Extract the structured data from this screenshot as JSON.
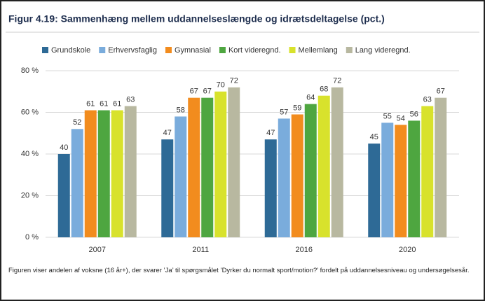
{
  "chart_data": {
    "type": "bar",
    "title": "Figur 4.19: Sammenhæng mellem uddannelseslængde og idrætsdeltagelse (pct.)",
    "caption": "Figuren viser andelen af voksne (16 år+), der svarer ’Ja’ til spørgsmålet ’Dyrker du normalt sport/motion?’ fordelt på uddannelsesniveau og undersøgelsesår.",
    "categories": [
      "2007",
      "2011",
      "2016",
      "2020"
    ],
    "series": [
      {
        "name": "Grundskole",
        "color": "#2e6a96",
        "values": [
          40,
          47,
          47,
          45
        ]
      },
      {
        "name": "Erhvervsfaglig",
        "color": "#7aacdc",
        "values": [
          52,
          58,
          57,
          55
        ]
      },
      {
        "name": "Gymnasial",
        "color": "#f28c1e",
        "values": [
          61,
          67,
          59,
          54
        ]
      },
      {
        "name": "Kort videregnd.",
        "color": "#4ea640",
        "values": [
          61,
          67,
          64,
          56
        ]
      },
      {
        "name": "Mellemlang",
        "color": "#d8e22c",
        "values": [
          61,
          70,
          68,
          63
        ]
      },
      {
        "name": "Lang videregnd.",
        "color": "#b8b8a0",
        "values": [
          63,
          72,
          72,
          67
        ]
      }
    ],
    "ylim": [
      0,
      80
    ],
    "yticks": [
      {
        "value": 0,
        "label": "0 %"
      },
      {
        "value": 20,
        "label": "20 %"
      },
      {
        "value": 40,
        "label": "40 %"
      },
      {
        "value": 60,
        "label": "60 %"
      },
      {
        "value": 80,
        "label": "80 %"
      }
    ],
    "grid": true,
    "legend": "top"
  }
}
